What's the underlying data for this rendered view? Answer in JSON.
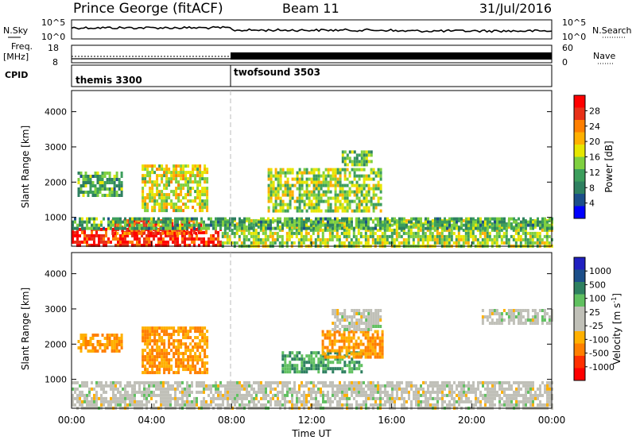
{
  "header": {
    "station": "Prince George (fitACF)",
    "beam": "Beam 11",
    "date": "31/Jul/2016"
  },
  "nsky_panel": {
    "left_label": "N.Sky",
    "right_label": "N.Search",
    "left_ticks": [
      "10^5",
      "10^0"
    ],
    "right_ticks": [
      "10^5",
      "10^0"
    ]
  },
  "freq_panel": {
    "left_label_1": "Freq.",
    "left_label_2": "[MHz]",
    "left_ticks": [
      "18",
      "8"
    ],
    "right_ticks": [
      "60",
      "0"
    ],
    "right_label": "Nave"
  },
  "cpid_panel": {
    "label": "CPID",
    "modes": [
      {
        "name": "themis 3300",
        "start_hour": 0
      },
      {
        "name": "twofsound 3503",
        "start_hour": 8
      }
    ]
  },
  "time_axis": {
    "label": "Time UT",
    "ticks": [
      "00:00",
      "04:00",
      "08:00",
      "12:00",
      "16:00",
      "20:00",
      "00:00"
    ]
  },
  "chart_data": [
    {
      "type": "heatmap",
      "name": "power",
      "ylabel": "Slant Range [km]",
      "xlim": [
        0,
        24
      ],
      "ylim": [
        180,
        4600
      ],
      "yticks": [
        "1000",
        "2000",
        "3000",
        "4000"
      ],
      "colorbar_label": "Power [dB]",
      "colorbar_ticks": [
        "28",
        "24",
        "20",
        "16",
        "12",
        "8",
        "4"
      ],
      "colorbar_colors": [
        "#ff0000",
        "#e83018",
        "#ff7f00",
        "#ffb000",
        "#e6e600",
        "#7fd040",
        "#3c9e5c",
        "#2e8060",
        "#1c4f8a",
        "#0000ff"
      ],
      "regions": [
        {
          "t0": 0.0,
          "t1": 7.5,
          "r0": 180,
          "r1": 700,
          "level": 26
        },
        {
          "t0": 2.0,
          "t1": 6.5,
          "r0": 500,
          "r1": 950,
          "level": 24
        },
        {
          "t0": 7.5,
          "t1": 24.0,
          "r0": 180,
          "r1": 950,
          "level": 14
        },
        {
          "t0": 0.0,
          "t1": 24.0,
          "r0": 700,
          "r1": 1000,
          "level": 10
        },
        {
          "t0": 0.3,
          "t1": 2.5,
          "r0": 1600,
          "r1": 2300,
          "level": 10
        },
        {
          "t0": 3.5,
          "t1": 6.8,
          "r0": 1200,
          "r1": 2500,
          "level": 16
        },
        {
          "t0": 9.8,
          "t1": 15.5,
          "r0": 1200,
          "r1": 2400,
          "level": 14
        },
        {
          "t0": 13.5,
          "t1": 15.0,
          "r0": 2500,
          "r1": 2900,
          "level": 12
        }
      ]
    },
    {
      "type": "heatmap",
      "name": "velocity",
      "ylabel": "Slant Range [km]",
      "xlim": [
        0,
        24
      ],
      "ylim": [
        180,
        4600
      ],
      "yticks": [
        "1000",
        "2000",
        "3000",
        "4000"
      ],
      "colorbar_label": "Velocity [m s^-1]",
      "colorbar_ticks": [
        "1000",
        "500",
        "100",
        "25",
        "-25",
        "-100",
        "-500",
        "-1000"
      ],
      "colorbar_colors": [
        "#2020c0",
        "#1c4f8a",
        "#2e8060",
        "#60c060",
        "#c0c0b8",
        "#c0c0b8",
        "#ffb000",
        "#ff7f00",
        "#ff3000",
        "#ff0000"
      ],
      "regions": [
        {
          "t0": 0.0,
          "t1": 24.0,
          "r0": 180,
          "r1": 950,
          "level": 0
        },
        {
          "t0": 0.3,
          "t1": 2.5,
          "r0": 1800,
          "r1": 2300,
          "level": -100
        },
        {
          "t0": 3.5,
          "t1": 6.8,
          "r0": 1200,
          "r1": 2500,
          "level": -100
        },
        {
          "t0": 10.5,
          "t1": 14.5,
          "r0": 1200,
          "r1": 1800,
          "level": 100
        },
        {
          "t0": 12.5,
          "t1": 15.5,
          "r0": 1600,
          "r1": 2400,
          "level": -100
        },
        {
          "t0": 13.0,
          "t1": 15.5,
          "r0": 2400,
          "r1": 3000,
          "level": 0
        },
        {
          "t0": 20.5,
          "t1": 24.0,
          "r0": 2600,
          "r1": 3000,
          "level": 0
        }
      ]
    }
  ]
}
